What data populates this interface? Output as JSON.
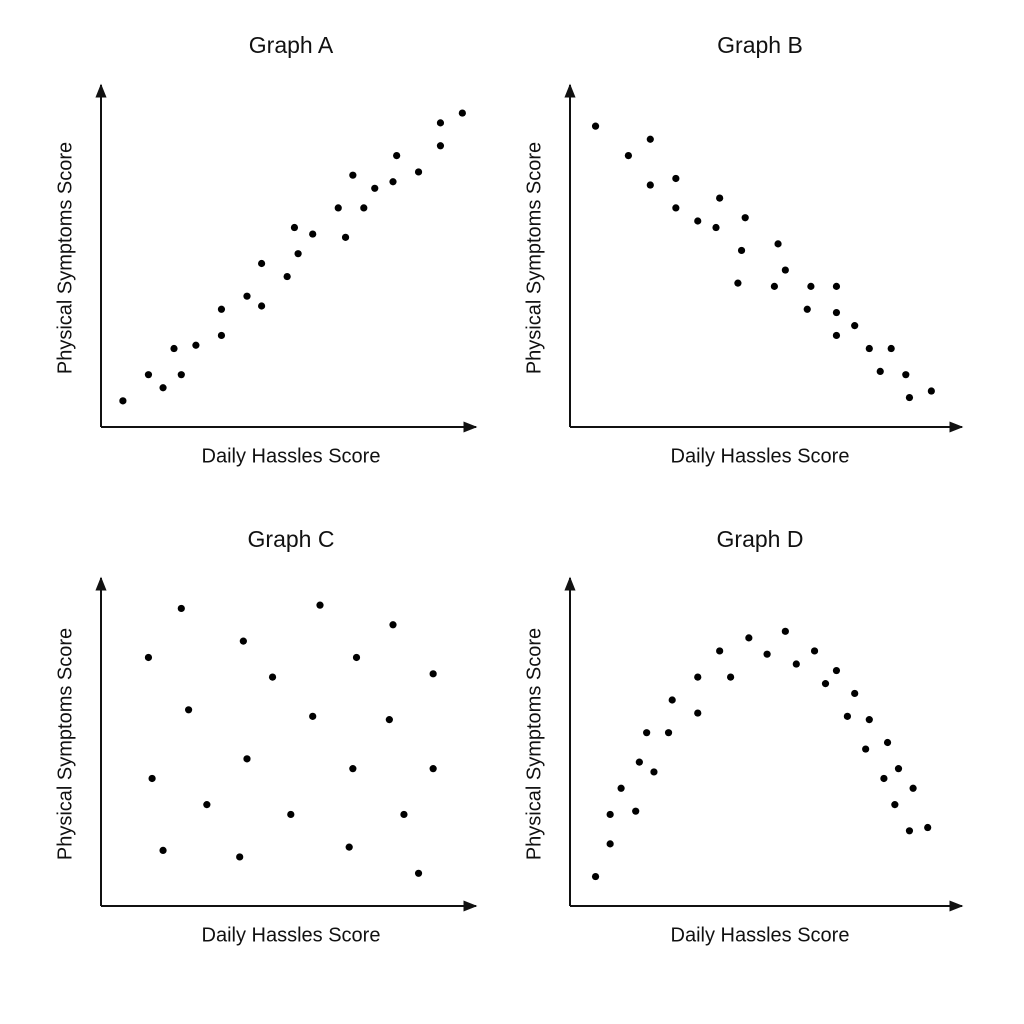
{
  "chart_data": [
    {
      "type": "scatter",
      "title": "Graph A",
      "x_label": "Daily Hassles Score",
      "y_label": "Physical Symptoms Score",
      "color": "#000000",
      "xlim": [
        0,
        100
      ],
      "ylim": [
        0,
        100
      ],
      "x": [
        6,
        13,
        17,
        20,
        22,
        26,
        33,
        33,
        40,
        44,
        44,
        51,
        53,
        54,
        58,
        65,
        67,
        69,
        72,
        75,
        80,
        81,
        87,
        93,
        93,
        99
      ],
      "values": [
        8,
        16,
        12,
        24,
        16,
        25,
        36,
        28,
        40,
        50,
        37,
        46,
        61,
        53,
        59,
        67,
        58,
        77,
        67,
        73,
        75,
        83,
        78,
        93,
        86,
        96
      ]
    },
    {
      "type": "scatter",
      "title": "Graph B",
      "x_label": "Daily Hassles Score",
      "y_label": "Physical Symptoms Score",
      "color": "#000000",
      "xlim": [
        0,
        100
      ],
      "ylim": [
        0,
        100
      ],
      "x": [
        7,
        16,
        22,
        22,
        29,
        29,
        35,
        40,
        41,
        48,
        47,
        46,
        57,
        59,
        56,
        66,
        65,
        73,
        73,
        78,
        73,
        82,
        88,
        85,
        92,
        93,
        99
      ],
      "values": [
        92,
        83,
        88,
        74,
        76,
        67,
        63,
        61,
        70,
        64,
        54,
        44,
        56,
        48,
        43,
        43,
        36,
        43,
        35,
        31,
        28,
        24,
        24,
        17,
        16,
        9,
        11
      ]
    },
    {
      "type": "scatter",
      "title": "Graph C",
      "x_label": "Daily Hassles Score",
      "y_label": "Physical Symptoms Score",
      "color": "#000000",
      "xlim": [
        0,
        100
      ],
      "ylim": [
        0,
        100
      ],
      "x": [
        13,
        22,
        39,
        60,
        80,
        70,
        47,
        91,
        24,
        58,
        79,
        14,
        40,
        69,
        91,
        29,
        52,
        83,
        17,
        38,
        68,
        87
      ],
      "values": [
        76,
        91,
        81,
        92,
        86,
        76,
        70,
        71,
        60,
        58,
        57,
        39,
        45,
        42,
        42,
        31,
        28,
        28,
        17,
        15,
        18,
        10
      ]
    },
    {
      "type": "scatter",
      "title": "Graph D",
      "x_label": "Daily Hassles Score",
      "y_label": "Physical Symptoms Score",
      "color": "#000000",
      "xlim": [
        0,
        100
      ],
      "ylim": [
        0,
        100
      ],
      "x": [
        7,
        11,
        11,
        14,
        18,
        19,
        21,
        23,
        27,
        28,
        35,
        35,
        41,
        44,
        49,
        54,
        59,
        62,
        67,
        70,
        73,
        76,
        78,
        82,
        81,
        87,
        86,
        90,
        89,
        94,
        93,
        98
      ],
      "values": [
        9,
        19,
        28,
        36,
        29,
        44,
        53,
        41,
        53,
        63,
        59,
        70,
        78,
        70,
        82,
        77,
        84,
        74,
        78,
        68,
        72,
        58,
        65,
        57,
        48,
        50,
        39,
        42,
        31,
        36,
        23,
        24
      ]
    }
  ]
}
